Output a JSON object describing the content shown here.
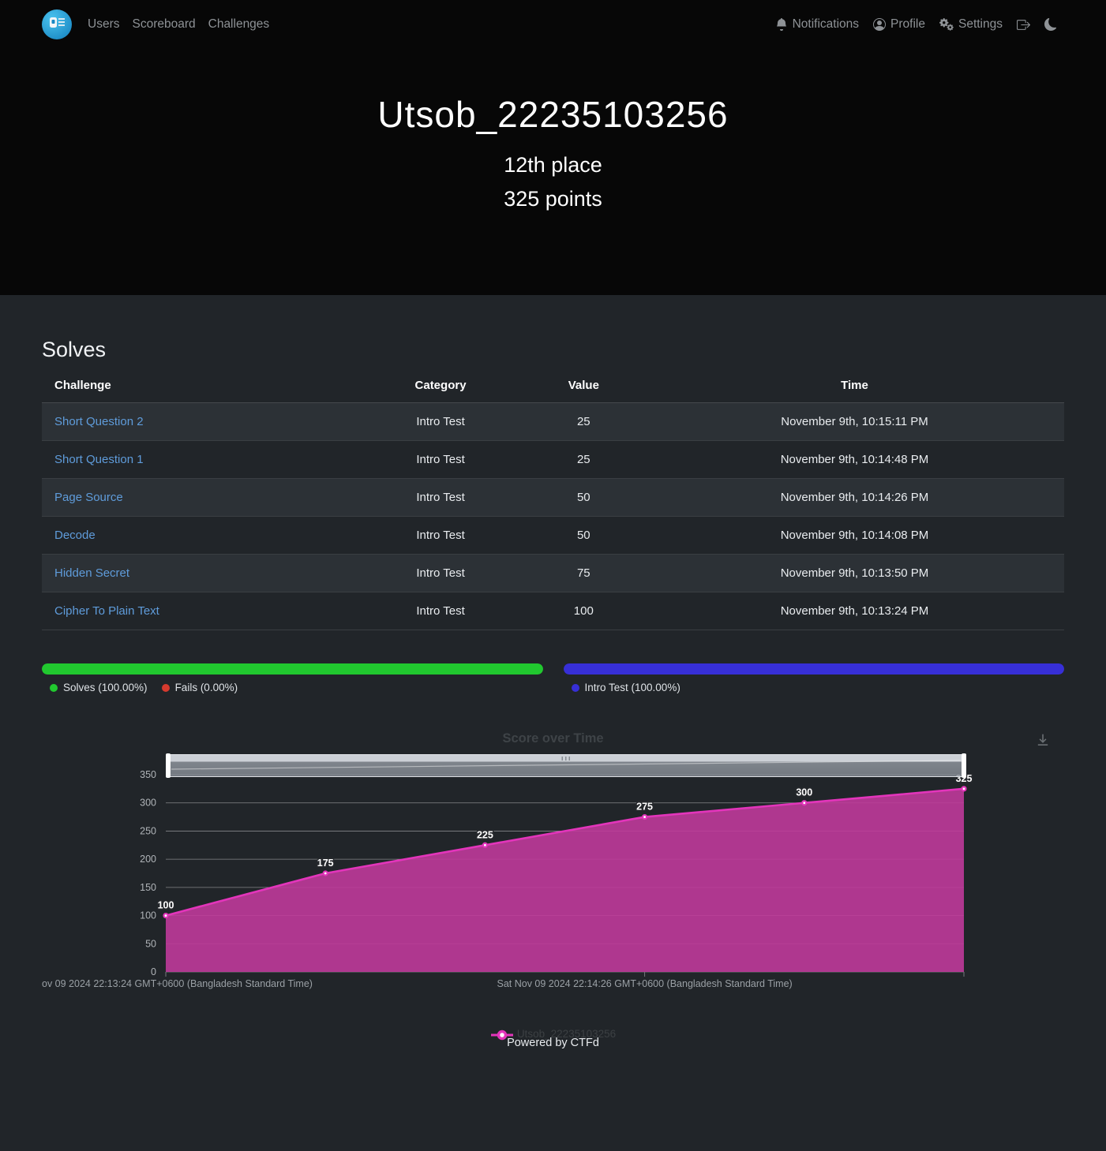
{
  "navbar": {
    "links": [
      "Users",
      "Scoreboard",
      "Challenges"
    ],
    "right": [
      {
        "icon": "bell-icon",
        "label": "Notifications"
      },
      {
        "icon": "person-icon",
        "label": "Profile"
      },
      {
        "icon": "gears-icon",
        "label": "Settings"
      },
      {
        "icon": "logout-icon",
        "label": ""
      },
      {
        "icon": "moon-icon",
        "label": ""
      }
    ]
  },
  "hero": {
    "username": "Utsob_22235103256",
    "place": "12th place",
    "points": "325 points"
  },
  "solves": {
    "heading": "Solves",
    "headers": [
      "Challenge",
      "Category",
      "Value",
      "Time"
    ],
    "rows": [
      {
        "challenge": "Short Question 2",
        "category": "Intro Test",
        "value": "25",
        "time": "November 9th, 10:15:11 PM"
      },
      {
        "challenge": "Short Question 1",
        "category": "Intro Test",
        "value": "25",
        "time": "November 9th, 10:14:48 PM"
      },
      {
        "challenge": "Page Source",
        "category": "Intro Test",
        "value": "50",
        "time": "November 9th, 10:14:26 PM"
      },
      {
        "challenge": "Decode",
        "category": "Intro Test",
        "value": "50",
        "time": "November 9th, 10:14:08 PM"
      },
      {
        "challenge": "Hidden Secret",
        "category": "Intro Test",
        "value": "75",
        "time": "November 9th, 10:13:50 PM"
      },
      {
        "challenge": "Cipher To Plain Text",
        "category": "Intro Test",
        "value": "100",
        "time": "November 9th, 10:13:24 PM"
      }
    ]
  },
  "progress": {
    "solves_fails": {
      "percent": 100,
      "bar_color": "#21c82f",
      "legend": [
        {
          "label": "Solves (100.00%)",
          "color": "#21c82f"
        },
        {
          "label": "Fails (0.00%)",
          "color": "#d63a2e"
        }
      ]
    },
    "categories": {
      "percent": 100,
      "bar_color": "#372fd7",
      "legend": [
        {
          "label": "Intro Test (100.00%)",
          "color": "#372fd7"
        }
      ]
    }
  },
  "chart_data": {
    "type": "area",
    "title": "Score over Time",
    "series": [
      {
        "name": "Utsob_22235103256",
        "x": [
          "22:13:24",
          "22:13:50",
          "22:14:08",
          "22:14:26",
          "22:14:48",
          "22:15:11"
        ],
        "values": [
          100,
          175,
          225,
          275,
          300,
          325
        ]
      }
    ],
    "ylim": [
      0,
      350
    ],
    "yticks": [
      0,
      50,
      100,
      150,
      200,
      250,
      300,
      350
    ],
    "xtick_labels": [
      "ov 09 2024 22:13:24 GMT+0600 (Bangladesh Standard Time)",
      "Sat Nov 09 2024 22:14:26 GMT+0600 (Bangladesh Standard Time)"
    ],
    "grid": true,
    "legend_position": "bottom",
    "colors": {
      "line": "#e335bb",
      "fill": "#bf3a9a",
      "marker_center": "#ffffff"
    }
  },
  "footer": {
    "powered": "Powered by CTFd"
  },
  "icons": [
    "ctfd-logo",
    "bell-icon",
    "person-icon",
    "gears-icon",
    "logout-icon",
    "moon-icon",
    "download-icon"
  ]
}
